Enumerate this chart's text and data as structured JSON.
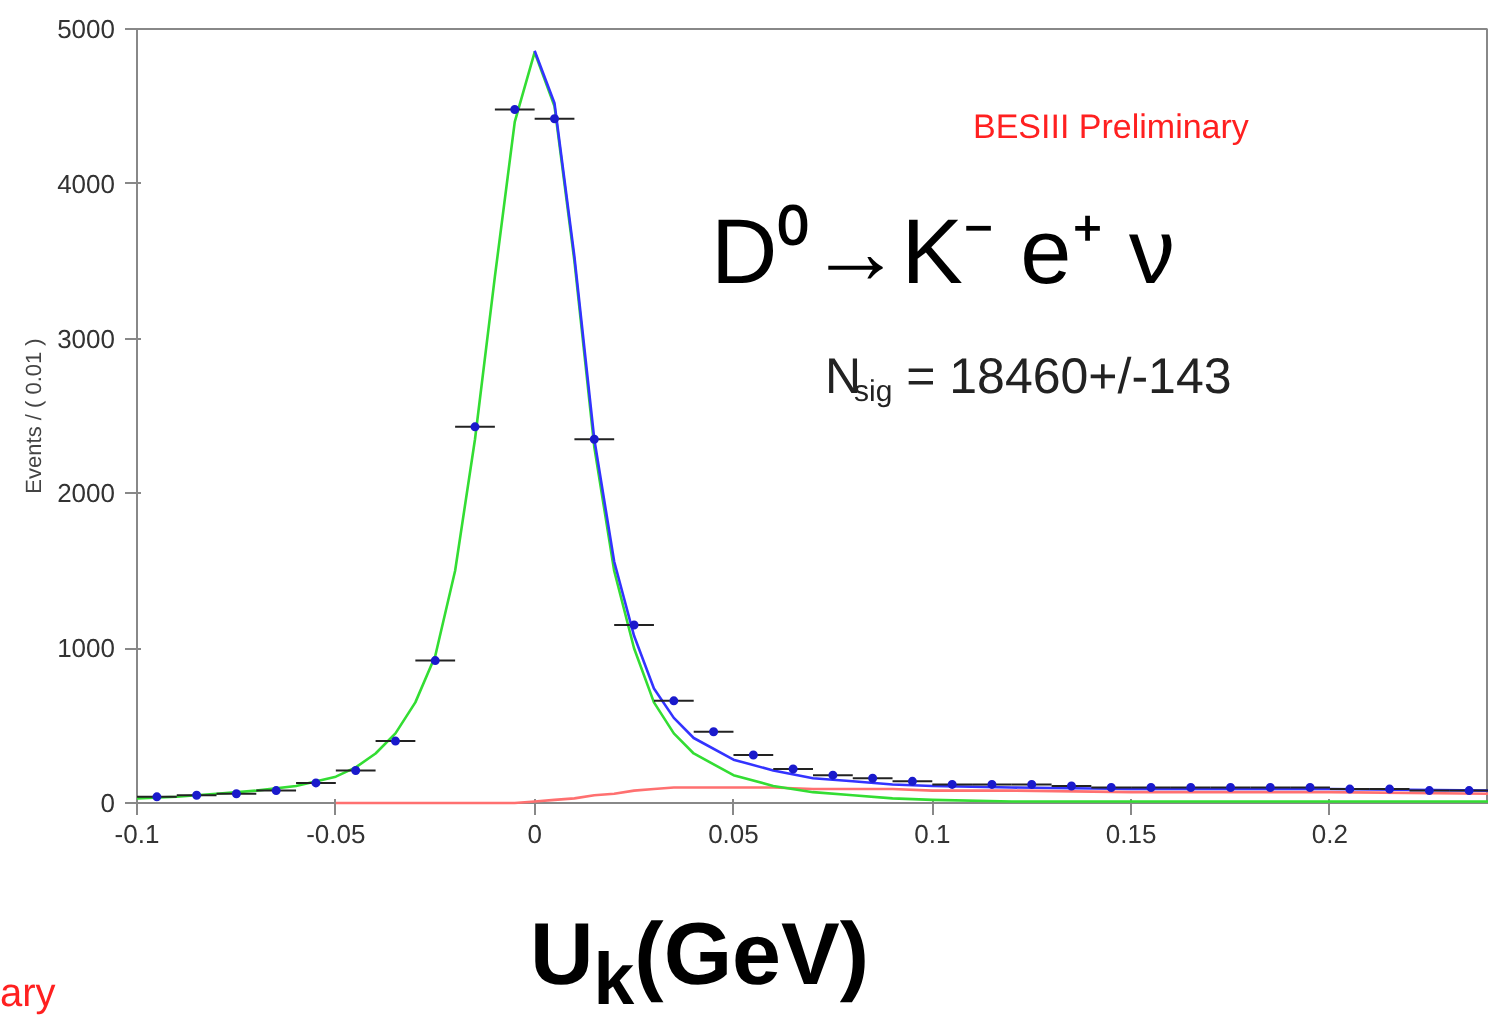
{
  "chart_data": {
    "type": "scatter",
    "title": "D⁰→K⁻ e⁺ ν",
    "xlabel": "U$_{k}$(GeV)",
    "ylabel": "Events / ( 0.01 )",
    "annotations": [
      "BESIII Preliminary",
      "N$_{sig}$ = 18460+/-143",
      "ary"
    ],
    "xlim": [
      -0.1,
      0.24
    ],
    "ylim": [
      0,
      5000
    ],
    "xticks": [
      -0.1,
      -0.05,
      0,
      0.05,
      0.1,
      0.15,
      0.2
    ],
    "yticks": [
      0,
      1000,
      2000,
      3000,
      4000,
      5000
    ],
    "series": [
      {
        "type": "scatter",
        "color": "#1a1acc",
        "marker": "circle",
        "x": [
          -0.095,
          -0.085,
          -0.075,
          -0.065,
          -0.055,
          -0.045,
          -0.035,
          -0.025,
          -0.015,
          -0.005,
          0.005,
          0.015,
          0.025,
          0.035,
          0.045,
          0.055,
          0.065,
          0.075,
          0.085,
          0.095,
          0.105,
          0.115,
          0.125,
          0.135,
          0.145,
          0.155,
          0.165,
          0.175,
          0.185,
          0.195,
          0.205,
          0.215,
          0.225,
          0.235
        ],
        "values": [
          40,
          50,
          60,
          80,
          130,
          210,
          400,
          920,
          2430,
          4480,
          4420,
          2350,
          1150,
          660,
          460,
          310,
          220,
          180,
          160,
          140,
          120,
          120,
          120,
          110,
          100,
          100,
          100,
          100,
          100,
          100,
          90,
          90,
          80,
          80
        ],
        "xerrors": [
          0.005,
          0.005,
          0.005,
          0.005,
          0.005,
          0.005,
          0.005,
          0.005,
          0.005,
          0.005,
          0.005,
          0.005,
          0.005,
          0.005,
          0.005,
          0.005,
          0.005,
          0.005,
          0.005,
          0.005,
          0.005,
          0.005,
          0.005,
          0.005,
          0.005,
          0.005,
          0.005,
          0.005,
          0.005,
          0.005,
          0.005,
          0.005,
          0.005,
          0.005
        ]
      },
      {
        "type": "line",
        "color": "#ff7070",
        "line_style": "solid",
        "x": [
          -0.05,
          -0.045,
          -0.04,
          -0.035,
          -0.03,
          -0.025,
          -0.02,
          -0.015,
          -0.01,
          -0.005,
          0,
          0.005,
          0.01,
          0.015,
          0.02,
          0.025,
          0.03,
          0.035,
          0.04,
          0.05,
          0.06,
          0.07,
          0.08,
          0.09,
          0.1,
          0.12,
          0.15,
          0.2,
          0.24
        ],
        "values": [
          0,
          0,
          0,
          0,
          0,
          0,
          0,
          0,
          0,
          0,
          10,
          20,
          30,
          50,
          60,
          80,
          90,
          100,
          100,
          100,
          100,
          90,
          90,
          90,
          80,
          80,
          70,
          70,
          60
        ]
      },
      {
        "type": "line",
        "color": "#33dd33",
        "line_style": "solid",
        "x": [
          -0.1,
          -0.09,
          -0.08,
          -0.07,
          -0.06,
          -0.05,
          -0.045,
          -0.04,
          -0.035,
          -0.03,
          -0.025,
          -0.02,
          -0.015,
          -0.01,
          -0.005,
          0,
          0.005,
          0.01,
          0.015,
          0.02,
          0.025,
          0.03,
          0.035,
          0.04,
          0.05,
          0.06,
          0.07,
          0.08,
          0.09,
          0.1,
          0.12,
          0.15,
          0.2,
          0.24
        ],
        "values": [
          30,
          40,
          60,
          80,
          110,
          170,
          230,
          320,
          450,
          650,
          950,
          1500,
          2350,
          3400,
          4400,
          4850,
          4500,
          3500,
          2300,
          1500,
          1000,
          650,
          450,
          320,
          180,
          110,
          70,
          50,
          30,
          20,
          10,
          10,
          10,
          10
        ]
      },
      {
        "type": "line",
        "color": "#3333ff",
        "line_style": "solid",
        "x": [
          0,
          0.005,
          0.01,
          0.015,
          0.02,
          0.025,
          0.03,
          0.035,
          0.04,
          0.05,
          0.06,
          0.07,
          0.08,
          0.09,
          0.1,
          0.12,
          0.15,
          0.2,
          0.24
        ],
        "values": [
          4860,
          4520,
          3530,
          2350,
          1560,
          1080,
          740,
          550,
          420,
          280,
          210,
          160,
          140,
          120,
          110,
          100,
          90,
          90,
          80
        ]
      }
    ]
  }
}
